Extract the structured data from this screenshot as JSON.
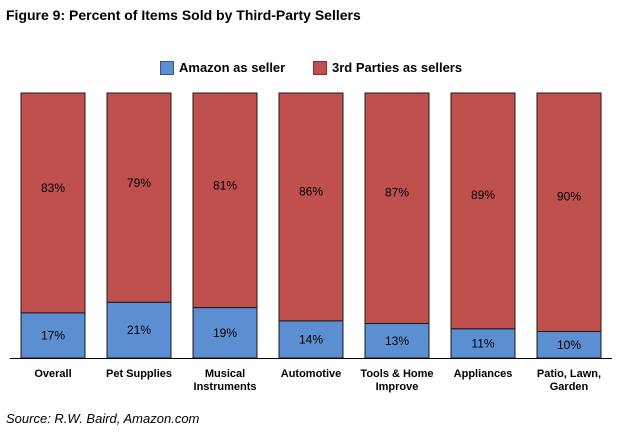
{
  "title": "Figure 9: Percent of Items Sold by Third-Party Sellers",
  "source": "Source: R.W. Baird, Amazon.com",
  "colors": {
    "amazon": "#5b8fd1",
    "third": "#c0504d",
    "border": "#1a1a1a"
  },
  "chart_data": {
    "type": "bar",
    "stacked": true,
    "normalized": true,
    "ylim": [
      0,
      100
    ],
    "grid": false,
    "legend_position": "top",
    "categories": [
      [
        "Overall"
      ],
      [
        "Pet Supplies"
      ],
      [
        "Musical",
        "Instruments"
      ],
      [
        "Automotive"
      ],
      [
        "Tools & Home",
        "Improve"
      ],
      [
        "Appliances"
      ],
      [
        "Patio, Lawn,",
        "Garden"
      ]
    ],
    "series": [
      {
        "name": "Amazon as seller",
        "values": [
          17,
          21,
          19,
          14,
          13,
          11,
          10
        ],
        "labels": [
          "17%",
          "21%",
          "19%",
          "14%",
          "13%",
          "11%",
          "10%"
        ]
      },
      {
        "name": "3rd Parties as sellers",
        "values": [
          83,
          79,
          81,
          86,
          87,
          89,
          90
        ],
        "labels": [
          "83%",
          "79%",
          "81%",
          "86%",
          "87%",
          "89%",
          "90%"
        ]
      }
    ]
  }
}
